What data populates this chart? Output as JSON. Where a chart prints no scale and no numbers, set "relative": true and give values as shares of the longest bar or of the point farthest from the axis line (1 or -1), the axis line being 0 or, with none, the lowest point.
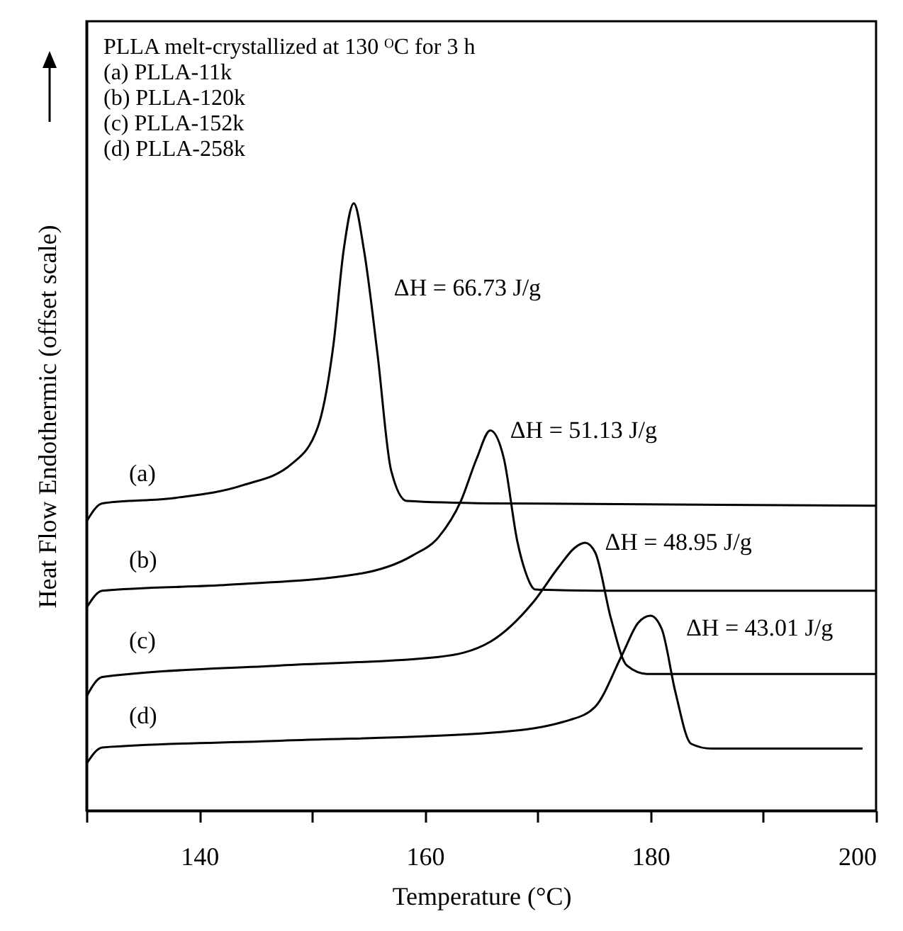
{
  "chart_data": {
    "type": "line",
    "title": "PLLA melt-crystallized at 130 ᴼC for 3 h",
    "xlabel": "Temperature (°C)",
    "ylabel": "Heat Flow Endothermic (offset scale)",
    "relative": true,
    "tick_labels": "x",
    "grid": false,
    "line_style": "solid",
    "xlim": [
      130,
      200
    ],
    "xticks": [
      {
        "value": 130,
        "label": null
      },
      140,
      {
        "value": 150,
        "label": null
      },
      160,
      {
        "value": 170,
        "label": null
      },
      180,
      {
        "value": 190,
        "label": null
      },
      200
    ],
    "annotations": [
      "(a) PLLA-11k",
      "(b) PLLA-120k",
      "(c) PLLA-152k",
      "(d) PLLA-258k",
      {
        "text": "ΔH = 66.73 J/g",
        "x": 155.5,
        "y": 0.86
      },
      {
        "text": "ΔH = 51.13 J/g",
        "x": 165.8,
        "y": 0.626
      },
      {
        "text": "ΔH = 48.95 J/g",
        "x": 174.2,
        "y": 0.441
      },
      {
        "text": "ΔH = 43.01 J/g",
        "x": 181.4,
        "y": 0.3
      }
    ],
    "series": [
      {
        "name": "(a)",
        "color": "#000000",
        "x": [
          130,
          131.4,
          137.9,
          143.9,
          148.2,
          150.5,
          151.9,
          152.8,
          153.7,
          154.6,
          155.8,
          157.0,
          158.4,
          165.8,
          200
        ],
        "values": [
          0.476,
          0.506,
          0.515,
          0.536,
          0.571,
          0.631,
          0.768,
          0.923,
          1.0,
          0.923,
          0.752,
          0.561,
          0.51,
          0.506,
          0.502
        ]
      },
      {
        "name": "(b)",
        "color": "#000000",
        "x": [
          130,
          131.4,
          142.6,
          154.2,
          158.9,
          161.2,
          163.2,
          164.6,
          165.8,
          167.0,
          168.2,
          168.9,
          169.8,
          175.3,
          200
        ],
        "values": [
          0.334,
          0.362,
          0.372,
          0.39,
          0.42,
          0.45,
          0.51,
          0.58,
          0.626,
          0.58,
          0.443,
          0.394,
          0.364,
          0.362,
          0.362
        ]
      },
      {
        "name": "(c)",
        "color": "#000000",
        "x": [
          130,
          131.4,
          147.2,
          161.2,
          165.8,
          169.6,
          171.9,
          173.3,
          174.2,
          175.1,
          176.5,
          177.9,
          179.7,
          200
        ],
        "values": [
          0.188,
          0.22,
          0.239,
          0.253,
          0.278,
          0.343,
          0.402,
          0.433,
          0.441,
          0.425,
          0.316,
          0.239,
          0.225,
          0.225
        ]
      },
      {
        "name": "(d)",
        "color": "#000000",
        "x": [
          130,
          131.4,
          147.2,
          165.8,
          172.8,
          175.1,
          177.5,
          178.9,
          180.0,
          181.0,
          182.2,
          183.6,
          185.4,
          198.8
        ],
        "values": [
          0.077,
          0.104,
          0.115,
          0.128,
          0.149,
          0.171,
          0.257,
          0.309,
          0.321,
          0.299,
          0.196,
          0.11,
          0.102,
          0.102
        ]
      }
    ]
  }
}
